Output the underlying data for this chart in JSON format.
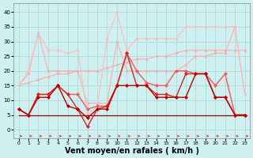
{
  "x": [
    0,
    1,
    2,
    3,
    4,
    5,
    6,
    7,
    8,
    9,
    10,
    11,
    12,
    13,
    14,
    15,
    16,
    17,
    18,
    19,
    20,
    21,
    22,
    23
  ],
  "background_color": "#cff0f0",
  "grid_color": "#aad4d4",
  "xlabel": "Vent moyen/en rafales ( km/h )",
  "ylim": [
    -3,
    43
  ],
  "xlim": [
    -0.5,
    23.5
  ],
  "yticks": [
    0,
    5,
    10,
    15,
    20,
    25,
    30,
    35,
    40
  ],
  "lines": [
    {
      "y": [
        15,
        16,
        17,
        18,
        19,
        19,
        20,
        20,
        20,
        21,
        22,
        23,
        24,
        24,
        25,
        25,
        26,
        27,
        27,
        27,
        27,
        27,
        27,
        27
      ],
      "color": "#ffaaaa",
      "marker": "s",
      "markersize": 1.5,
      "linewidth": 0.8,
      "zorder": 2
    },
    {
      "y": [
        15,
        19,
        33,
        20,
        20,
        20,
        20,
        9,
        9,
        9,
        30,
        20,
        20,
        20,
        20,
        20,
        20,
        22,
        25,
        25,
        26,
        26,
        35,
        12
      ],
      "color": "#ffaaaa",
      "marker": "s",
      "markersize": 1.5,
      "linewidth": 0.8,
      "zorder": 2
    },
    {
      "y": [
        15,
        20,
        33,
        27,
        27,
        26,
        27,
        5,
        8,
        31,
        40,
        27,
        31,
        31,
        31,
        31,
        31,
        35,
        35,
        35,
        35,
        35,
        35,
        12
      ],
      "color": "#ffbbbb",
      "marker": "s",
      "markersize": 1.5,
      "linewidth": 0.8,
      "zorder": 2
    },
    {
      "y": [
        7,
        5,
        12,
        12,
        15,
        12,
        12,
        7,
        8,
        8,
        15,
        26,
        20,
        16,
        15,
        15,
        20,
        20,
        19,
        19,
        15,
        19,
        5,
        5
      ],
      "color": "#ff5555",
      "marker": "D",
      "markersize": 2.0,
      "linewidth": 1.0,
      "zorder": 3
    },
    {
      "y": [
        7,
        5,
        12,
        12,
        15,
        12,
        7,
        1,
        7,
        8,
        15,
        26,
        15,
        15,
        12,
        12,
        11,
        19,
        19,
        19,
        11,
        11,
        5,
        5
      ],
      "color": "#dd2222",
      "marker": "D",
      "markersize": 2.0,
      "linewidth": 1.0,
      "zorder": 3
    },
    {
      "y": [
        7,
        5,
        11,
        11,
        15,
        8,
        7,
        4,
        7,
        7,
        15,
        15,
        15,
        15,
        11,
        11,
        11,
        11,
        19,
        19,
        11,
        11,
        5,
        5
      ],
      "color": "#bb0000",
      "marker": "D",
      "markersize": 2.0,
      "linewidth": 1.0,
      "zorder": 3
    },
    {
      "y": [
        5,
        5,
        5,
        5,
        5,
        5,
        5,
        5,
        5,
        5,
        5,
        5,
        5,
        5,
        5,
        5,
        5,
        5,
        5,
        5,
        5,
        5,
        5,
        5
      ],
      "color": "#990000",
      "marker": null,
      "linewidth": 0.9,
      "zorder": 2
    }
  ],
  "arrow_color": "#cc3333",
  "xlabel_fontsize": 7,
  "xlabel_fontweight": "bold"
}
